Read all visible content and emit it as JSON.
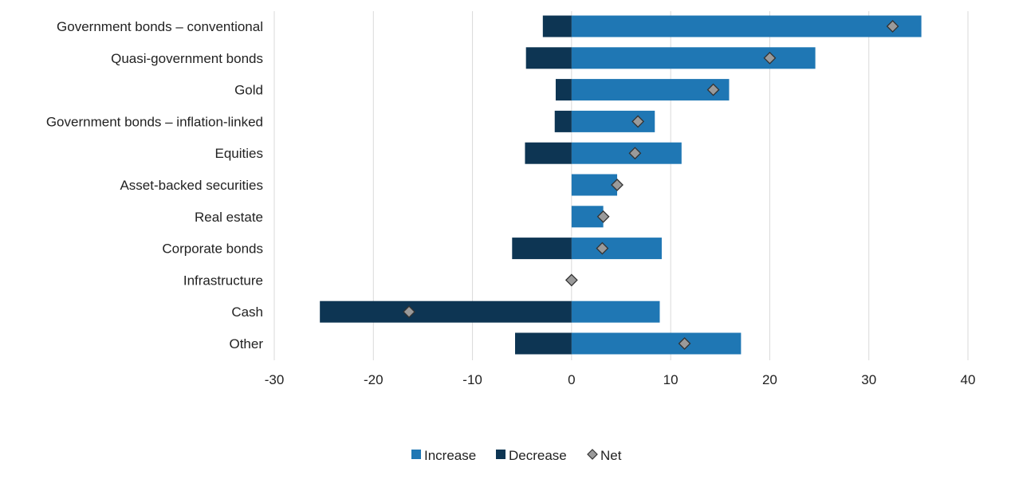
{
  "chart_data": {
    "type": "bar",
    "orientation": "horizontal",
    "stacked": "diverging",
    "categories": [
      "Government bonds – conventional",
      "Quasi-government bonds",
      "Gold",
      "Government bonds – inflation-linked",
      "Equities",
      "Asset-backed securities",
      "Real estate",
      "Corporate bonds",
      "Infrastructure",
      "Cash",
      "Other"
    ],
    "series": [
      {
        "name": "Increase",
        "type": "bar",
        "color": "#1f77b4",
        "values": [
          35.3,
          24.6,
          15.9,
          8.4,
          11.1,
          4.6,
          3.2,
          9.1,
          0,
          8.9,
          17.1
        ]
      },
      {
        "name": "Decrease",
        "type": "bar",
        "color": "#0d3553",
        "values": [
          -2.9,
          -4.6,
          -1.6,
          -1.7,
          -4.7,
          0,
          0,
          -6.0,
          0,
          -25.4,
          -5.7
        ]
      },
      {
        "name": "Net",
        "type": "marker",
        "color": "#9a9a9a",
        "values": [
          32.4,
          20.0,
          14.3,
          6.7,
          6.4,
          4.6,
          3.2,
          3.1,
          0,
          -16.4,
          11.4
        ]
      }
    ],
    "xaxis": {
      "min": -30,
      "max": 40,
      "ticks": [
        -30,
        -20,
        -10,
        0,
        10,
        20,
        30,
        40
      ],
      "tick_labels": [
        "-30",
        "-20",
        "-10",
        "0",
        "10",
        "20",
        "30",
        "40"
      ]
    },
    "title": "",
    "xlabel": "",
    "ylabel": "",
    "grid": "vertical",
    "legend": {
      "position": "bottom-center",
      "items": [
        {
          "label": "Increase",
          "marker": "square",
          "color": "#1f77b4"
        },
        {
          "label": "Decrease",
          "marker": "square",
          "color": "#0d3553"
        },
        {
          "label": "Net",
          "marker": "diamond",
          "color": "#9a9a9a"
        }
      ]
    }
  }
}
